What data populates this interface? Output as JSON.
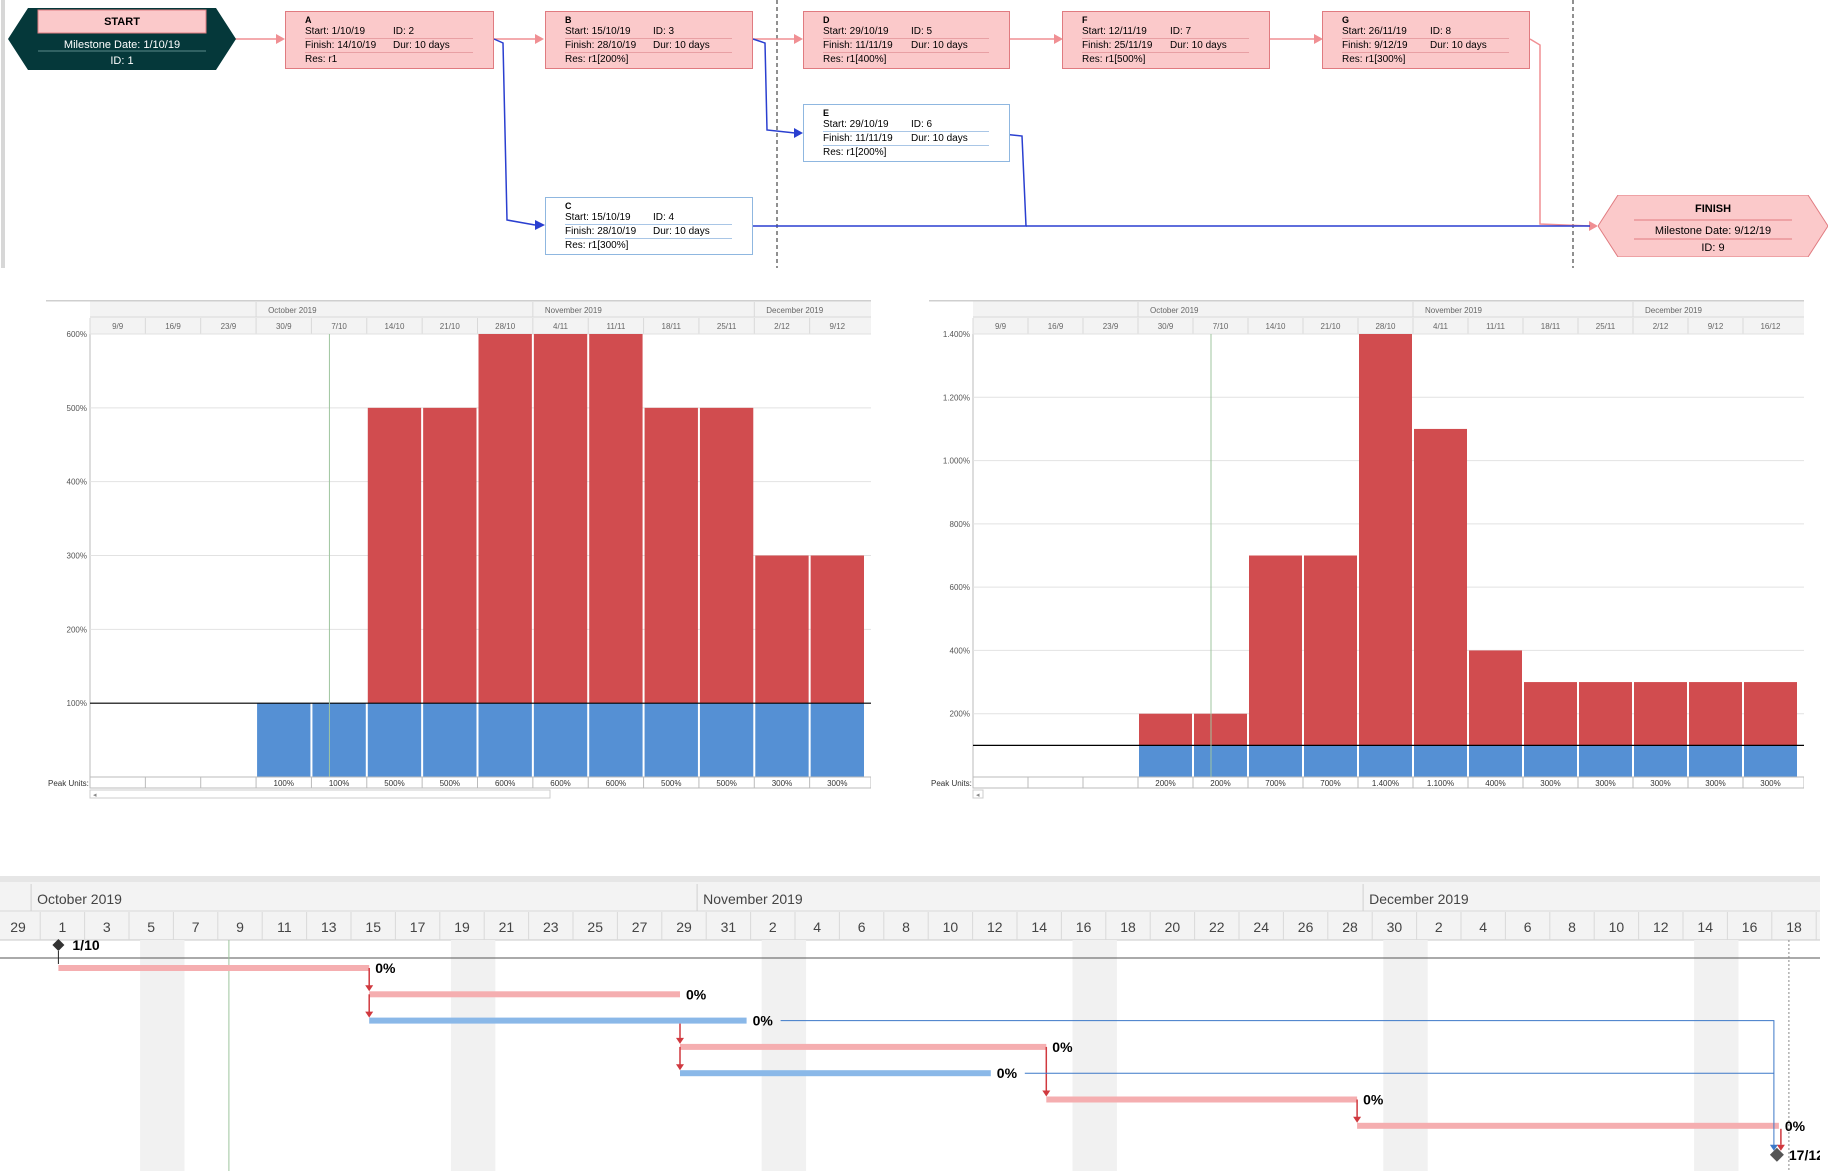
{
  "network": {
    "start": {
      "title": "START",
      "date": "Milestone Date: 1/10/19",
      "id": "ID: 1"
    },
    "finish": {
      "title": "FINISH",
      "date": "Milestone Date: 9/12/19",
      "id": "ID: 9"
    },
    "tasks": [
      {
        "name": "A",
        "start": "Start: 1/10/19",
        "id": "ID: 2",
        "finish": "Finish: 14/10/19",
        "dur": "Dur: 10 days",
        "res": "Res:   r1",
        "style": "red"
      },
      {
        "name": "B",
        "start": "Start: 15/10/19",
        "id": "ID: 3",
        "finish": "Finish: 28/10/19",
        "dur": "Dur: 10 days",
        "res": "Res:   r1[200%]",
        "style": "red"
      },
      {
        "name": "D",
        "start": "Start: 29/10/19",
        "id": "ID: 5",
        "finish": "Finish: 11/11/19",
        "dur": "Dur: 10 days",
        "res": "Res:   r1[400%]",
        "style": "red"
      },
      {
        "name": "F",
        "start": "Start: 12/11/19",
        "id": "ID: 7",
        "finish": "Finish: 25/11/19",
        "dur": "Dur: 10 days",
        "res": "Res:   r1[500%]",
        "style": "red"
      },
      {
        "name": "G",
        "start": "Start: 26/11/19",
        "id": "ID: 8",
        "finish": "Finish: 9/12/19",
        "dur": "Dur: 10 days",
        "res": "Res:   r1[300%]",
        "style": "red"
      },
      {
        "name": "E",
        "start": "Start: 29/10/19",
        "id": "ID: 6",
        "finish": "Finish: 11/11/19",
        "dur": "Dur: 10 days",
        "res": "Res:   r1[200%]",
        "style": "blue"
      },
      {
        "name": "C",
        "start": "Start: 15/10/19",
        "id": "ID: 4",
        "finish": "Finish: 28/10/19",
        "dur": "Dur: 10 days",
        "res": "Res:   r1[300%]",
        "style": "blue"
      }
    ]
  },
  "histogram_left": {
    "months": [
      "October 2019",
      "November 2019",
      "December 2019"
    ],
    "weeks": [
      "9/9",
      "16/9",
      "23/9",
      "30/9",
      "7/10",
      "14/10",
      "21/10",
      "28/10",
      "4/11",
      "11/11",
      "18/11",
      "25/11",
      "2/12",
      "9/12"
    ],
    "peak_label": "Peak Units:",
    "peak_values": [
      "",
      "",
      "",
      "100%",
      "100%",
      "500%",
      "500%",
      "600%",
      "600%",
      "600%",
      "500%",
      "500%",
      "300%",
      "300%"
    ]
  },
  "histogram_right": {
    "months": [
      "October 2019",
      "November 2019",
      "December 2019"
    ],
    "weeks": [
      "9/9",
      "16/9",
      "23/9",
      "30/9",
      "7/10",
      "14/10",
      "21/10",
      "28/10",
      "4/11",
      "11/11",
      "18/11",
      "25/11",
      "2/12",
      "9/12",
      "16/12"
    ],
    "peak_label": "Peak Units:",
    "peak_values": [
      "",
      "",
      "",
      "200%",
      "200%",
      "700%",
      "700%",
      "1.400%",
      "1.100%",
      "400%",
      "300%",
      "300%",
      "300%",
      "300%",
      "300%"
    ]
  },
  "chart_data": [
    {
      "type": "bar",
      "categories": [
        "9/9",
        "16/9",
        "23/9",
        "30/9",
        "7/10",
        "14/10",
        "21/10",
        "28/10",
        "4/11",
        "11/11",
        "18/11",
        "25/11",
        "2/12",
        "9/12"
      ],
      "ylim": [
        0,
        600
      ],
      "yticks": [
        "100%",
        "200%",
        "300%",
        "400%",
        "500%",
        "600%"
      ],
      "capacity": 100,
      "values": [
        0,
        0,
        0,
        100,
        100,
        500,
        500,
        600,
        600,
        600,
        500,
        500,
        300,
        300
      ],
      "colors": {
        "allocated": "#5590d4",
        "overallocated": "#d14c4f"
      }
    },
    {
      "type": "bar",
      "categories": [
        "9/9",
        "16/9",
        "23/9",
        "30/9",
        "7/10",
        "14/10",
        "21/10",
        "28/10",
        "4/11",
        "11/11",
        "18/11",
        "25/11",
        "2/12",
        "9/12",
        "16/12"
      ],
      "ylim": [
        0,
        1400
      ],
      "yticks": [
        "200%",
        "400%",
        "600%",
        "800%",
        "1.000%",
        "1.200%",
        "1.400%"
      ],
      "capacity": 100,
      "values": [
        0,
        0,
        0,
        200,
        200,
        700,
        700,
        1400,
        1100,
        400,
        300,
        300,
        300,
        300,
        300
      ],
      "colors": {
        "allocated": "#5590d4",
        "overallocated": "#d14c4f"
      }
    }
  ],
  "gantt": {
    "months": [
      {
        "label": "October 2019",
        "day": 1
      },
      {
        "label": "November 2019",
        "day": 31
      },
      {
        "label": "December 2019",
        "day": 61
      }
    ],
    "days": [
      {
        "d": 0,
        "label": "29"
      },
      {
        "d": 2,
        "label": "1"
      },
      {
        "d": 4,
        "label": "3"
      },
      {
        "d": 6,
        "label": "5"
      },
      {
        "d": 8,
        "label": "7"
      },
      {
        "d": 10,
        "label": "9"
      },
      {
        "d": 12,
        "label": "11"
      },
      {
        "d": 14,
        "label": "13"
      },
      {
        "d": 16,
        "label": "15"
      },
      {
        "d": 18,
        "label": "17"
      },
      {
        "d": 20,
        "label": "19"
      },
      {
        "d": 22,
        "label": "21"
      },
      {
        "d": 24,
        "label": "23"
      },
      {
        "d": 26,
        "label": "25"
      },
      {
        "d": 28,
        "label": "27"
      },
      {
        "d": 30,
        "label": "29"
      },
      {
        "d": 32,
        "label": "31"
      },
      {
        "d": 34,
        "label": "2"
      },
      {
        "d": 36,
        "label": "4"
      },
      {
        "d": 38,
        "label": "6"
      },
      {
        "d": 40,
        "label": "8"
      },
      {
        "d": 42,
        "label": "10"
      },
      {
        "d": 44,
        "label": "12"
      },
      {
        "d": 46,
        "label": "14"
      },
      {
        "d": 48,
        "label": "16"
      },
      {
        "d": 50,
        "label": "18"
      },
      {
        "d": 52,
        "label": "20"
      },
      {
        "d": 54,
        "label": "22"
      },
      {
        "d": 56,
        "label": "24"
      },
      {
        "d": 58,
        "label": "26"
      },
      {
        "d": 60,
        "label": "28"
      },
      {
        "d": 62,
        "label": "30"
      },
      {
        "d": 64,
        "label": "2"
      },
      {
        "d": 66,
        "label": "4"
      },
      {
        "d": 68,
        "label": "6"
      },
      {
        "d": 70,
        "label": "8"
      },
      {
        "d": 72,
        "label": "10"
      },
      {
        "d": 74,
        "label": "12"
      },
      {
        "d": 76,
        "label": "14"
      },
      {
        "d": 78,
        "label": "16"
      },
      {
        "d": 80,
        "label": "18"
      }
    ],
    "start_milestone": "1/10",
    "finish_milestone": "17/12",
    "bars": [
      {
        "s": 2,
        "e": 16,
        "color": "red",
        "label": "0%"
      },
      {
        "s": 16,
        "e": 30,
        "color": "red",
        "label": "0%"
      },
      {
        "s": 16,
        "e": 33,
        "color": "blue",
        "label": "0%"
      },
      {
        "s": 30,
        "e": 46.5,
        "color": "red",
        "label": "0%"
      },
      {
        "s": 30,
        "e": 44,
        "color": "blue",
        "label": "0%"
      },
      {
        "s": 46.5,
        "e": 60.5,
        "color": "red",
        "label": "0%"
      },
      {
        "s": 60.5,
        "e": 79.5,
        "color": "red",
        "label": "0%"
      }
    ],
    "finish_day": 79.5,
    "status_day": 9.5,
    "colors": {
      "red": "#f5aeb0",
      "blue": "#8ab8e8",
      "arrow_red": "#d0393f",
      "arrow_blue": "#3c78c8"
    }
  }
}
